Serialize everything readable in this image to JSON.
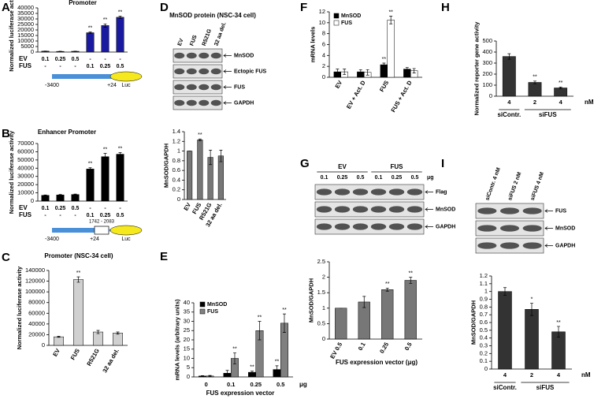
{
  "chart_data": [
    {
      "type": "bar",
      "panel": "A",
      "title": "Promoter",
      "y_label": "Normalized luciferase activity",
      "categories": [
        null,
        null,
        null,
        null,
        null,
        null
      ],
      "values": [
        800,
        600,
        700,
        17500,
        24000,
        31500
      ],
      "errors": [
        100,
        100,
        100,
        600,
        1500,
        1000
      ],
      "annotations": [
        null,
        null,
        null,
        "**",
        "**",
        "**"
      ],
      "color": "#1a1aa0",
      "ylim": [
        0,
        40000
      ],
      "yticks": [
        0,
        5000,
        10000,
        15000,
        20000,
        25000,
        30000,
        35000,
        40000
      ],
      "rows": [
        {
          "label": "EV",
          "cells": [
            "0.1",
            "0.25",
            "0.5",
            "-",
            "-",
            "-"
          ]
        },
        {
          "label": "FUS",
          "cells": [
            "-",
            "-",
            "-",
            "0.1",
            "0.25",
            "0.5"
          ]
        }
      ],
      "diagram": {
        "start": "-3400",
        "end": "+24",
        "reporter": "Luc"
      }
    },
    {
      "type": "bar",
      "panel": "B",
      "title": "Enhancer Promoter",
      "y_label": "Normalized luciferase activity",
      "categories": [
        null,
        null,
        null,
        null,
        null,
        null
      ],
      "values": [
        7000,
        7500,
        8000,
        39000,
        54000,
        57000
      ],
      "errors": [
        500,
        500,
        500,
        1500,
        4000,
        2000
      ],
      "annotations": [
        null,
        null,
        null,
        "**",
        "**",
        "**"
      ],
      "color": "#000000",
      "ylim": [
        0,
        70000
      ],
      "yticks": [
        0,
        10000,
        20000,
        30000,
        40000,
        50000,
        60000,
        70000
      ],
      "rows": [
        {
          "label": "EV",
          "cells": [
            "0.1",
            "0.25",
            "0.5",
            "-",
            "-",
            "-"
          ]
        },
        {
          "label": "FUS",
          "cells": [
            "-",
            "-",
            "-",
            "0.1",
            "0.25",
            "0.5"
          ]
        }
      ],
      "diagram": {
        "start": "-3400",
        "end": "+24",
        "enhancer": "1742 - 2083",
        "reporter": "Luc"
      }
    },
    {
      "type": "bar",
      "panel": "C",
      "title": "Promoter (NSC-34 cell)",
      "y_label": "Normalized luciferase activity",
      "categories": [
        "EV",
        "FUS",
        "R521G",
        "32 aa del."
      ],
      "values": [
        16000,
        123000,
        25000,
        23000
      ],
      "errors": [
        1000,
        5000,
        3000,
        2000
      ],
      "annotations": [
        null,
        "**",
        null,
        null
      ],
      "color": "#d0d0d0",
      "ylim": [
        0,
        140000
      ],
      "yticks": [
        0,
        20000,
        40000,
        60000,
        80000,
        100000,
        120000,
        140000
      ]
    },
    {
      "type": "bar",
      "panel": "D",
      "title": "MnSOD protein (NSC-34 cell)",
      "y_label": "MnSOD/GAPDH",
      "categories": [
        "EV",
        "FUS",
        "R521G",
        "32 aa del."
      ],
      "values": [
        1,
        1.23,
        0.87,
        0.9
      ],
      "errors": [
        0,
        0.02,
        0.15,
        0.12
      ],
      "annotations": [
        null,
        "**",
        null,
        null
      ],
      "color": "#777777",
      "ylim": [
        0,
        1.4
      ],
      "yticks": [
        0,
        0.2,
        0.4,
        0.6,
        0.8,
        1,
        1.2,
        1.4
      ],
      "blot": {
        "lanes": [
          "EV",
          "FUS",
          "R521G",
          "32 aa del."
        ],
        "bands": [
          "MnSOD",
          "Ectopic FUS",
          "FUS",
          "GAPDH"
        ]
      }
    },
    {
      "type": "bar",
      "panel": "E",
      "y_label": "mRNA levels (arbitrary units)",
      "x_label": "FUS expression vector",
      "unit": "μg",
      "categories": [
        "0",
        "0.1",
        "0.25",
        "0.5"
      ],
      "series": [
        {
          "name": "MnSOD",
          "color": "#000000",
          "values": [
            0.5,
            2,
            2.5,
            4
          ],
          "errors": [
            0.2,
            1.5,
            0.6,
            2
          ],
          "annotations": [
            null,
            null,
            "**",
            "**"
          ]
        },
        {
          "name": "FUS",
          "color": "#808080",
          "values": [
            0.5,
            10,
            25,
            29
          ],
          "errors": [
            0.3,
            3,
            5,
            5
          ],
          "annotations": [
            null,
            "**",
            "**",
            "**"
          ]
        }
      ],
      "ylim": [
        0,
        40
      ],
      "yticks": [
        0,
        5,
        10,
        15,
        20,
        25,
        30,
        35,
        40
      ]
    },
    {
      "type": "bar",
      "panel": "F",
      "y_label": "mRNA levels",
      "categories": [
        "EV",
        "EV + Act. D",
        "FUS",
        "FUS + Act. D"
      ],
      "series": [
        {
          "name": "MnSOD",
          "color": "#000000",
          "values": [
            1,
            1,
            2.3,
            1.5
          ],
          "errors": [
            0.5,
            0.4,
            0.3,
            0.3
          ],
          "annotations": [
            null,
            null,
            "**",
            null
          ]
        },
        {
          "name": "FUS",
          "color": "#ffffff",
          "values": [
            1,
            0.9,
            10.5,
            1.2
          ],
          "errors": [
            0.5,
            0.5,
            0.7,
            0.4
          ],
          "annotations": [
            null,
            null,
            "**",
            null
          ]
        }
      ],
      "ylim": [
        0,
        12
      ],
      "yticks": [
        0,
        2,
        4,
        6,
        8,
        10,
        12
      ]
    },
    {
      "type": "bar",
      "panel": "G",
      "y_label": "MnSOD/GAPDH",
      "x_label": "FUS expression vector (μg)",
      "categories": [
        "EV 0.5",
        "0.1",
        "0.25",
        "0.5"
      ],
      "values": [
        1,
        1.2,
        1.6,
        1.9
      ],
      "errors": [
        0,
        0.18,
        0.05,
        0.1
      ],
      "annotations": [
        null,
        null,
        "**",
        "**"
      ],
      "color": "#777777",
      "ylim": [
        0,
        2.5
      ],
      "yticks": [
        0,
        0.5,
        1,
        1.5,
        2,
        2.5
      ],
      "blot": {
        "groups": [
          "EV",
          "FUS"
        ],
        "lanes": [
          "0.1",
          "0.25",
          "0.5",
          "0.1",
          "0.25",
          "0.5"
        ],
        "unit": "μg",
        "bands": [
          "Flag",
          "MnSOD",
          "GAPDH"
        ]
      }
    },
    {
      "type": "bar",
      "panel": "H",
      "y_label": "Normalized reporter gene activity",
      "unit": "nM",
      "categories": [
        "4",
        "2",
        "4"
      ],
      "groups": [
        "siContr.",
        "siFUS"
      ],
      "values": [
        360,
        125,
        75
      ],
      "errors": [
        25,
        12,
        8
      ],
      "annotations": [
        null,
        "**",
        "**"
      ],
      "color": "#333333",
      "ylim": [
        0,
        500
      ],
      "yticks": [
        0,
        100,
        200,
        300,
        400,
        500
      ]
    },
    {
      "type": "bar",
      "panel": "I",
      "y_label": "MnSOD/GAPDH",
      "unit": "nM",
      "categories": [
        "4",
        "2",
        "4"
      ],
      "groups": [
        "siContr.",
        "siFUS"
      ],
      "values": [
        1,
        0.77,
        0.48
      ],
      "errors": [
        0.05,
        0.08,
        0.07
      ],
      "annotations": [
        null,
        "*",
        "**"
      ],
      "color": "#333333",
      "ylim": [
        0,
        1.2
      ],
      "yticks": [
        0,
        0.1,
        0.2,
        0.3,
        0.4,
        0.5,
        0.6,
        0.7,
        0.8,
        0.9,
        1,
        1.1,
        1.2
      ],
      "blot": {
        "lanes": [
          "siContr. 4 nM",
          "siFUS 2 nM",
          "siFUS 4 nM"
        ],
        "bands": [
          "FUS",
          "MnSOD",
          "GAPDH"
        ]
      }
    }
  ]
}
